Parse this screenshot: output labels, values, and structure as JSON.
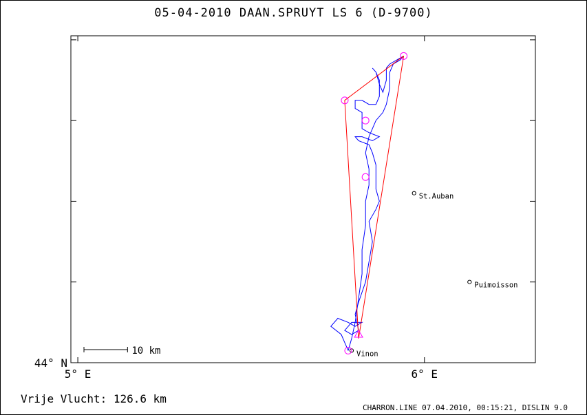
{
  "header": {
    "title": "05-04-2010    DAAN.SPRUYT    LS 6 (D-9700)"
  },
  "footer": {
    "distance_label": "Vrije Vlucht:  126.6 km",
    "credits": "CHARRON.LINE 07.04.2010, 00:15:21, DISLIN 9.0"
  },
  "colors": {
    "track": "#0000ff",
    "task": "#ff0000",
    "turnpoint": "#ff00ff",
    "axes": "#000000"
  },
  "chart_data": {
    "type": "map-track",
    "title": "05-04-2010    DAAN.SPRUYT    LS 6 (D-9700)",
    "x_unit": "deg E",
    "y_unit": "deg N",
    "xlim": [
      4.98,
      6.32
    ],
    "ylim": [
      44.0,
      44.81
    ],
    "x_ticks": [
      {
        "value": 5.0,
        "label": "5° E"
      },
      {
        "value": 6.0,
        "label": "6° E"
      }
    ],
    "y_ticks": [
      {
        "value": 44.0,
        "label": "44° N"
      },
      {
        "value": 44.2,
        "label": ""
      },
      {
        "value": 44.4,
        "label": ""
      },
      {
        "value": 44.6,
        "label": ""
      },
      {
        "value": 44.8,
        "label": ""
      }
    ],
    "scale_bar": {
      "length_km": 10,
      "label": "10 km"
    },
    "places": [
      {
        "name": "St.Auban",
        "lon": 5.97,
        "lat": 44.42
      },
      {
        "name": "Puimoisson",
        "lon": 6.13,
        "lat": 44.2
      },
      {
        "name": "Vinon",
        "lon": 5.79,
        "lat": 44.03
      }
    ],
    "task_triangle": [
      {
        "lon": 5.94,
        "lat": 44.76
      },
      {
        "lon": 5.77,
        "lat": 44.65
      },
      {
        "lon": 5.81,
        "lat": 44.06
      },
      {
        "lon": 5.94,
        "lat": 44.76
      }
    ],
    "turnpoints": [
      {
        "lon": 5.94,
        "lat": 44.76
      },
      {
        "lon": 5.77,
        "lat": 44.65
      },
      {
        "lon": 5.83,
        "lat": 44.6
      },
      {
        "lon": 5.83,
        "lat": 44.46
      },
      {
        "lon": 5.78,
        "lat": 44.03
      }
    ],
    "start_marker": {
      "lon": 5.81,
      "lat": 44.07
    },
    "track": [
      [
        5.78,
        44.03
      ],
      [
        5.77,
        44.05
      ],
      [
        5.76,
        44.07
      ],
      [
        5.73,
        44.09
      ],
      [
        5.75,
        44.11
      ],
      [
        5.78,
        44.1
      ],
      [
        5.8,
        44.09
      ],
      [
        5.82,
        44.1
      ],
      [
        5.79,
        44.1
      ],
      [
        5.77,
        44.08
      ],
      [
        5.79,
        44.07
      ],
      [
        5.81,
        44.08
      ],
      [
        5.8,
        44.12
      ],
      [
        5.81,
        44.15
      ],
      [
        5.83,
        44.2
      ],
      [
        5.84,
        44.25
      ],
      [
        5.85,
        44.3
      ],
      [
        5.84,
        44.35
      ],
      [
        5.86,
        44.38
      ],
      [
        5.87,
        44.4
      ],
      [
        5.86,
        44.43
      ],
      [
        5.86,
        44.46
      ],
      [
        5.86,
        44.49
      ],
      [
        5.85,
        44.52
      ],
      [
        5.84,
        44.54
      ],
      [
        5.81,
        44.55
      ],
      [
        5.8,
        44.56
      ],
      [
        5.82,
        44.56
      ],
      [
        5.85,
        44.55
      ],
      [
        5.87,
        44.56
      ],
      [
        5.84,
        44.57
      ],
      [
        5.82,
        44.58
      ],
      [
        5.82,
        44.6
      ],
      [
        5.82,
        44.62
      ],
      [
        5.8,
        44.63
      ],
      [
        5.8,
        44.65
      ],
      [
        5.82,
        44.65
      ],
      [
        5.84,
        44.64
      ],
      [
        5.86,
        44.64
      ],
      [
        5.87,
        44.66
      ],
      [
        5.87,
        44.7
      ],
      [
        5.86,
        44.72
      ],
      [
        5.85,
        44.73
      ],
      [
        5.86,
        44.72
      ],
      [
        5.87,
        44.69
      ],
      [
        5.88,
        44.67
      ],
      [
        5.89,
        44.7
      ],
      [
        5.89,
        44.73
      ],
      [
        5.9,
        44.74
      ],
      [
        5.92,
        44.75
      ],
      [
        5.94,
        44.76
      ],
      [
        5.93,
        44.75
      ],
      [
        5.91,
        44.74
      ],
      [
        5.9,
        44.72
      ],
      [
        5.9,
        44.68
      ],
      [
        5.89,
        44.64
      ],
      [
        5.88,
        44.62
      ],
      [
        5.86,
        44.6
      ],
      [
        5.85,
        44.58
      ],
      [
        5.84,
        44.56
      ],
      [
        5.83,
        44.52
      ],
      [
        5.84,
        44.48
      ],
      [
        5.84,
        44.44
      ],
      [
        5.83,
        44.4
      ],
      [
        5.83,
        44.34
      ],
      [
        5.82,
        44.28
      ],
      [
        5.82,
        44.22
      ],
      [
        5.81,
        44.16
      ],
      [
        5.8,
        44.1
      ],
      [
        5.79,
        44.06
      ],
      [
        5.78,
        44.03
      ]
    ]
  }
}
